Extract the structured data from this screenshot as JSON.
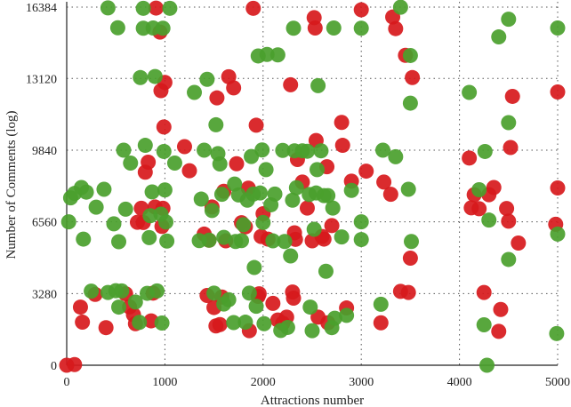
{
  "chart_data": {
    "type": "scatter",
    "title": "",
    "xlabel": "Attractions number",
    "ylabel": "Number of Comments (log)",
    "xlim": [
      0,
      5000
    ],
    "ylim": [
      0,
      16384
    ],
    "x_ticks": [
      0,
      1000,
      2000,
      3000,
      4000,
      5000
    ],
    "y_ticks": [
      0,
      3280,
      6560,
      9840,
      13120,
      16384
    ],
    "grid": true,
    "legend": false,
    "colors": {
      "red": "#d7191c",
      "green": "#4aa02c"
    },
    "red_points": [
      [
        0,
        0
      ],
      [
        80,
        30
      ],
      [
        140,
        2660
      ],
      [
        160,
        1970
      ],
      [
        290,
        3240
      ],
      [
        400,
        1720
      ],
      [
        600,
        3270
      ],
      [
        640,
        2670
      ],
      [
        680,
        2310
      ],
      [
        700,
        1900
      ],
      [
        720,
        6540
      ],
      [
        760,
        7180
      ],
      [
        780,
        6530
      ],
      [
        800,
        8830
      ],
      [
        830,
        9290
      ],
      [
        860,
        2030
      ],
      [
        880,
        3300
      ],
      [
        900,
        7240
      ],
      [
        910,
        16340
      ],
      [
        950,
        15240
      ],
      [
        960,
        12560
      ],
      [
        970,
        6350
      ],
      [
        980,
        7180
      ],
      [
        990,
        10900
      ],
      [
        1000,
        12940
      ],
      [
        1200,
        10000
      ],
      [
        1250,
        8900
      ],
      [
        1400,
        6000
      ],
      [
        1430,
        3190
      ],
      [
        1450,
        5720
      ],
      [
        1480,
        7240
      ],
      [
        1500,
        2640
      ],
      [
        1520,
        1800
      ],
      [
        1530,
        12230
      ],
      [
        1560,
        1860
      ],
      [
        1580,
        3120
      ],
      [
        1600,
        7960
      ],
      [
        1620,
        5690
      ],
      [
        1650,
        13200
      ],
      [
        1700,
        12690
      ],
      [
        1730,
        9220
      ],
      [
        1780,
        6520
      ],
      [
        1820,
        6330
      ],
      [
        1850,
        8100
      ],
      [
        1860,
        1580
      ],
      [
        1900,
        16330
      ],
      [
        1930,
        10980
      ],
      [
        1950,
        3150
      ],
      [
        1960,
        3270
      ],
      [
        1980,
        5890
      ],
      [
        2000,
        6930
      ],
      [
        2050,
        5770
      ],
      [
        2100,
        2830
      ],
      [
        2150,
        2070
      ],
      [
        2200,
        1920
      ],
      [
        2240,
        2200
      ],
      [
        2280,
        12830
      ],
      [
        2300,
        3350
      ],
      [
        2310,
        3070
      ],
      [
        2320,
        6060
      ],
      [
        2330,
        5760
      ],
      [
        2350,
        9410
      ],
      [
        2400,
        8380
      ],
      [
        2450,
        7190
      ],
      [
        2500,
        5690
      ],
      [
        2520,
        15900
      ],
      [
        2530,
        15430
      ],
      [
        2540,
        10280
      ],
      [
        2560,
        2200
      ],
      [
        2600,
        5890
      ],
      [
        2620,
        5770
      ],
      [
        2650,
        9080
      ],
      [
        2660,
        1940
      ],
      [
        2700,
        6390
      ],
      [
        2800,
        11110
      ],
      [
        2810,
        10060
      ],
      [
        2850,
        2620
      ],
      [
        2900,
        8420
      ],
      [
        3000,
        16260
      ],
      [
        3050,
        8880
      ],
      [
        3200,
        1940
      ],
      [
        3230,
        8380
      ],
      [
        3300,
        7820
      ],
      [
        3320,
        15930
      ],
      [
        3350,
        15400
      ],
      [
        3400,
        3380
      ],
      [
        3450,
        14180
      ],
      [
        3480,
        3330
      ],
      [
        3520,
        13160
      ],
      [
        3500,
        4900
      ],
      [
        4100,
        9480
      ],
      [
        4120,
        7200
      ],
      [
        4150,
        7800
      ],
      [
        4200,
        7160
      ],
      [
        4250,
        3330
      ],
      [
        4300,
        7800
      ],
      [
        4350,
        8130
      ],
      [
        4400,
        1550
      ],
      [
        4420,
        2550
      ],
      [
        4480,
        7170
      ],
      [
        4500,
        6590
      ],
      [
        4520,
        9960
      ],
      [
        4540,
        12300
      ],
      [
        4600,
        5590
      ],
      [
        4980,
        6450
      ],
      [
        5000,
        8110
      ],
      [
        5000,
        12500
      ]
    ],
    "green_points": [
      [
        20,
        6560
      ],
      [
        40,
        7660
      ],
      [
        80,
        7860
      ],
      [
        150,
        8130
      ],
      [
        170,
        5770
      ],
      [
        200,
        7920
      ],
      [
        250,
        3390
      ],
      [
        300,
        7230
      ],
      [
        380,
        8050
      ],
      [
        420,
        16350
      ],
      [
        420,
        3330
      ],
      [
        480,
        6470
      ],
      [
        500,
        3410
      ],
      [
        520,
        15440
      ],
      [
        530,
        2660
      ],
      [
        530,
        5650
      ],
      [
        560,
        3400
      ],
      [
        580,
        9840
      ],
      [
        600,
        7140
      ],
      [
        650,
        9250
      ],
      [
        700,
        2890
      ],
      [
        740,
        1960
      ],
      [
        750,
        13160
      ],
      [
        780,
        16330
      ],
      [
        780,
        15420
      ],
      [
        800,
        10060
      ],
      [
        820,
        3290
      ],
      [
        840,
        5840
      ],
      [
        850,
        6840
      ],
      [
        870,
        7930
      ],
      [
        880,
        15430
      ],
      [
        900,
        13210
      ],
      [
        920,
        3400
      ],
      [
        960,
        6910
      ],
      [
        970,
        1930
      ],
      [
        980,
        15420
      ],
      [
        990,
        9780
      ],
      [
        1000,
        8020
      ],
      [
        1010,
        6550
      ],
      [
        1020,
        5680
      ],
      [
        1050,
        16330
      ],
      [
        1100,
        9250
      ],
      [
        1300,
        12480
      ],
      [
        1350,
        5700
      ],
      [
        1370,
        7600
      ],
      [
        1400,
        9840
      ],
      [
        1430,
        13080
      ],
      [
        1450,
        5720
      ],
      [
        1480,
        7080
      ],
      [
        1500,
        3300
      ],
      [
        1520,
        11000
      ],
      [
        1540,
        9680
      ],
      [
        1560,
        9210
      ],
      [
        1580,
        7820
      ],
      [
        1600,
        5850
      ],
      [
        1600,
        2800
      ],
      [
        1650,
        3000
      ],
      [
        1700,
        1950
      ],
      [
        1710,
        8290
      ],
      [
        1720,
        5660
      ],
      [
        1750,
        7790
      ],
      [
        1780,
        5700
      ],
      [
        1800,
        6430
      ],
      [
        1820,
        1970
      ],
      [
        1840,
        7550
      ],
      [
        1860,
        3300
      ],
      [
        1880,
        9550
      ],
      [
        1900,
        7830
      ],
      [
        1910,
        4470
      ],
      [
        1930,
        2700
      ],
      [
        1950,
        14150
      ],
      [
        1970,
        7880
      ],
      [
        1990,
        9850
      ],
      [
        2000,
        6530
      ],
      [
        2010,
        1900
      ],
      [
        2030,
        8950
      ],
      [
        2040,
        14220
      ],
      [
        2080,
        7340
      ],
      [
        2100,
        5690
      ],
      [
        2120,
        7830
      ],
      [
        2150,
        14200
      ],
      [
        2180,
        1590
      ],
      [
        2200,
        9830
      ],
      [
        2220,
        5660
      ],
      [
        2250,
        1730
      ],
      [
        2280,
        5000
      ],
      [
        2300,
        7550
      ],
      [
        2310,
        15420
      ],
      [
        2320,
        9810
      ],
      [
        2340,
        8120
      ],
      [
        2400,
        9810
      ],
      [
        2450,
        9790
      ],
      [
        2470,
        7810
      ],
      [
        2480,
        2660
      ],
      [
        2500,
        1580
      ],
      [
        2520,
        6220
      ],
      [
        2540,
        7880
      ],
      [
        2550,
        8950
      ],
      [
        2560,
        12790
      ],
      [
        2590,
        9810
      ],
      [
        2620,
        7760
      ],
      [
        2640,
        4300
      ],
      [
        2660,
        7760
      ],
      [
        2700,
        1720
      ],
      [
        2710,
        7190
      ],
      [
        2720,
        15430
      ],
      [
        2730,
        2150
      ],
      [
        2800,
        5870
      ],
      [
        2850,
        2280
      ],
      [
        2900,
        8000
      ],
      [
        3000,
        15420
      ],
      [
        3000,
        6560
      ],
      [
        3000,
        5750
      ],
      [
        3200,
        2790
      ],
      [
        3220,
        9840
      ],
      [
        3350,
        9540
      ],
      [
        3400,
        16380
      ],
      [
        3480,
        8050
      ],
      [
        3500,
        14170
      ],
      [
        3500,
        11990
      ],
      [
        3510,
        5660
      ],
      [
        4100,
        12480
      ],
      [
        4200,
        8030
      ],
      [
        4250,
        1850
      ],
      [
        4260,
        9780
      ],
      [
        4280,
        0
      ],
      [
        4300,
        6640
      ],
      [
        4400,
        15020
      ],
      [
        4500,
        11100
      ],
      [
        4500,
        15830
      ],
      [
        4500,
        4840
      ],
      [
        5000,
        6000
      ],
      [
        5000,
        15430
      ],
      [
        4990,
        1450
      ]
    ]
  }
}
